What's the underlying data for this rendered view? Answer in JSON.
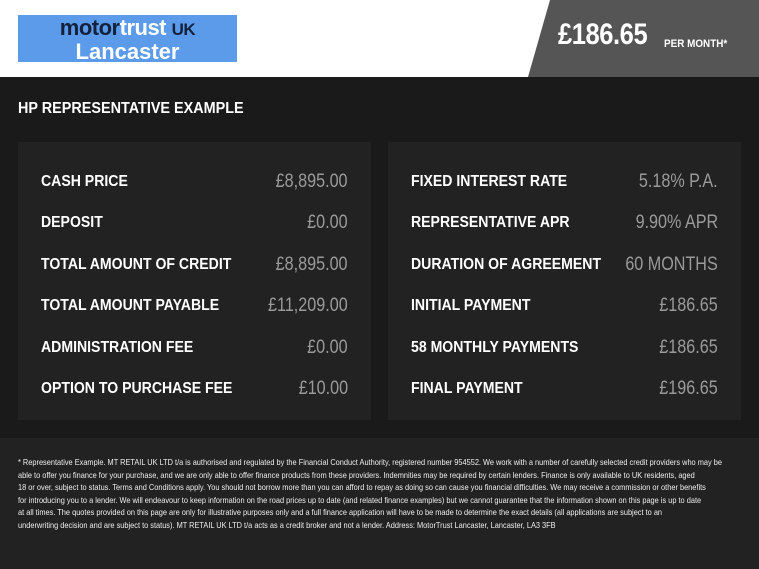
{
  "logo": {
    "word1": "motor",
    "word2": "trust",
    "word3": "UK",
    "word4": "Lancaster"
  },
  "header": {
    "price": "£186.65",
    "per_month": "PER MONTH*"
  },
  "title": "HP REPRESENTATIVE EXAMPLE",
  "left_rows": [
    {
      "label": "CASH PRICE",
      "value": "£8,895.00"
    },
    {
      "label": "DEPOSIT",
      "value": "£0.00"
    },
    {
      "label": "TOTAL AMOUNT OF CREDIT",
      "value": "£8,895.00"
    },
    {
      "label": "TOTAL AMOUNT PAYABLE",
      "value": "£11,209.00"
    },
    {
      "label": "ADMINISTRATION FEE",
      "value": "£0.00"
    },
    {
      "label": "OPTION TO PURCHASE FEE",
      "value": "£10.00"
    }
  ],
  "right_rows": [
    {
      "label": "FIXED INTEREST RATE",
      "value": "5.18% P.A."
    },
    {
      "label": "REPRESENTATIVE APR",
      "value": "9.90% APR"
    },
    {
      "label": "DURATION OF AGREEMENT",
      "value": "60 MONTHS"
    },
    {
      "label": "INITIAL PAYMENT",
      "value": "£186.65"
    },
    {
      "label": "58 MONTHLY PAYMENTS",
      "value": "£186.65"
    },
    {
      "label": "FINAL PAYMENT",
      "value": "£196.65"
    }
  ],
  "disclaimer": [
    "* Representative Example. MT RETAIL UK LTD t/a is authorised and regulated by the Financial Conduct Authority, registered number 954552. We work with a number of carefully selected credit providers who may be",
    "able to offer you finance for your purchase, and we are only able to offer finance products from these providers. Indemnities may be required by certain lenders. Finance is only available to UK residents, aged",
    "18 or over, subject to status. Terms and Conditions apply. You should not borrow more than you can afford to repay as doing so can cause you financial difficulties. We may receive a commission or other benefits",
    "for introducing you to a lender. We will endeavour to keep information on the road prices up to date (and related finance examples) but we cannot guarantee that the information shown on this page is up to date",
    "at all times. The quotes provided on this page are only for illustrative purposes only and a full finance application will have to be made to determine the exact details (all applications are subject to an",
    "underwriting decision and are subject to status). MT RETAIL UK LTD t/a acts as a credit broker and not a lender. Address: MotorTrust Lancaster, Lancaster, LA3 3FB"
  ]
}
